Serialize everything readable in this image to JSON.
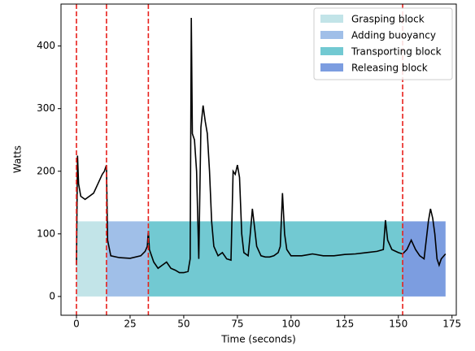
{
  "chart_data": {
    "type": "line",
    "xlabel": "Time (seconds)",
    "ylabel": "Watts",
    "xlim": [
      -7.2,
      177
    ],
    "ylim": [
      -30,
      467
    ],
    "xticks": [
      0,
      25,
      50,
      75,
      100,
      125,
      150,
      175
    ],
    "yticks": [
      0,
      100,
      200,
      300,
      400
    ],
    "legend": "upper right",
    "spans": [
      {
        "name": "Grasping block",
        "color": "#c2e4e8",
        "start": 0,
        "end": 14,
        "bottom": 0,
        "top": 120
      },
      {
        "name": "Adding buoyancy",
        "color": "#a0bfe8",
        "start": 14,
        "end": 33.5,
        "bottom": 0,
        "top": 120
      },
      {
        "name": "Transporting block",
        "color": "#72c9d2",
        "start": 33.5,
        "end": 152,
        "bottom": 0,
        "top": 120
      },
      {
        "name": "Releasing block",
        "color": "#7c9de0",
        "start": 152,
        "end": 172,
        "bottom": 0,
        "top": 120
      }
    ],
    "vlines": [
      0,
      14,
      33.5,
      152
    ],
    "vline_color": "#e8201c",
    "x": [
      0,
      0.5,
      1,
      2,
      4,
      6,
      8,
      10,
      12,
      13,
      14,
      14.5,
      16,
      20,
      25,
      30,
      32,
      33,
      33.5,
      34,
      36,
      38,
      40,
      42,
      44,
      46,
      48,
      50,
      52,
      53,
      53.5,
      54,
      55,
      56,
      57,
      58,
      59,
      60,
      61,
      62,
      63,
      64,
      66,
      68,
      70,
      72,
      73,
      74,
      75,
      76,
      77,
      78,
      80,
      81,
      82,
      83,
      84,
      86,
      88,
      90,
      92,
      94,
      95,
      96,
      97,
      98,
      100,
      105,
      110,
      115,
      120,
      125,
      130,
      135,
      140,
      143,
      144,
      145,
      147,
      150,
      152,
      154,
      156,
      158,
      160,
      162,
      164,
      165,
      166,
      167,
      168,
      169,
      170,
      172
    ],
    "series": [
      {
        "color": "#000000",
        "values": [
          50,
          225,
          180,
          160,
          155,
          160,
          165,
          180,
          195,
          200,
          210,
          90,
          65,
          62,
          61,
          65,
          72,
          80,
          105,
          75,
          55,
          45,
          50,
          55,
          45,
          42,
          38,
          38,
          40,
          60,
          445,
          260,
          250,
          200,
          60,
          270,
          305,
          280,
          260,
          200,
          120,
          80,
          65,
          70,
          60,
          58,
          200,
          195,
          210,
          190,
          100,
          70,
          65,
          100,
          140,
          110,
          80,
          65,
          63,
          63,
          65,
          70,
          80,
          165,
          100,
          75,
          65,
          65,
          68,
          65,
          65,
          67,
          68,
          70,
          72,
          75,
          122,
          90,
          75,
          70,
          68,
          75,
          90,
          75,
          65,
          60,
          120,
          140,
          125,
          100,
          60,
          50,
          60,
          68
        ]
      }
    ]
  }
}
